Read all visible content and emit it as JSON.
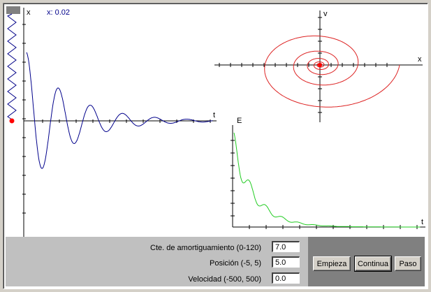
{
  "colors": {
    "oscillation": "#00008b",
    "phase": "#dd2222",
    "energy": "#22cc22",
    "readout": "#00008b",
    "mass": "#ff0000",
    "spring": "#000088",
    "spring_handle": "#808080"
  },
  "readout": {
    "text": "x: 0.02"
  },
  "icons": {
    "spring": "spring-icon",
    "mass": "mass-dot-icon"
  },
  "chart_data": [
    {
      "type": "line",
      "name": "oscillation",
      "xlabel": "t",
      "ylabel": "x",
      "description": "damped oscillation x(t)",
      "initial_position": 5.0,
      "damping": 7.0,
      "xlim": [
        0,
        13
      ],
      "ylim": [
        -7,
        5
      ],
      "grid": false
    },
    {
      "type": "line",
      "name": "phase-space",
      "xlabel": "x",
      "ylabel": "v",
      "description": "inward spiral in phase plane",
      "grid": false
    },
    {
      "type": "area",
      "name": "energy",
      "xlabel": "t",
      "ylabel": "E",
      "description": "energy decays exponentially",
      "grid": false
    }
  ],
  "controls": {
    "damping": {
      "label": "Cte. de amortiguamiento (0-120)",
      "value": "7.0"
    },
    "position": {
      "label": "Posición (-5, 5)",
      "value": "5.0"
    },
    "velocity": {
      "label": "Velocidad (-500, 500)",
      "value": "0.0"
    }
  },
  "buttons": {
    "start": "Empieza",
    "continue": "Continua",
    "step": "Paso"
  }
}
